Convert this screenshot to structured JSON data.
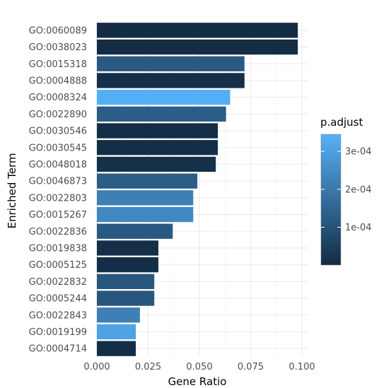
{
  "chart_data": {
    "type": "bar",
    "orientation": "horizontal",
    "xlabel": "Gene Ratio",
    "ylabel": "Enriched Term",
    "xlim": [
      0,
      0.1
    ],
    "x_ticks": [
      "0.000",
      "0.025",
      "0.050",
      "0.075",
      "0.100"
    ],
    "x_tick_values": [
      0,
      0.025,
      0.05,
      0.075,
      0.1
    ],
    "grid": true,
    "categories": [
      "GO:0060089",
      "GO:0038023",
      "GO:0015318",
      "GO:0004888",
      "GO:0008324",
      "GO:0022890",
      "GO:0030546",
      "GO:0030545",
      "GO:0048018",
      "GO:0046873",
      "GO:0022803",
      "GO:0015267",
      "GO:0022836",
      "GO:0019838",
      "GO:0005125",
      "GO:0022832",
      "GO:0005244",
      "GO:0022843",
      "GO:0019199",
      "GO:0004714"
    ],
    "values": [
      0.098,
      0.098,
      0.072,
      0.072,
      0.065,
      0.063,
      0.059,
      0.059,
      0.058,
      0.049,
      0.047,
      0.047,
      0.037,
      0.03,
      0.03,
      0.028,
      0.028,
      0.021,
      0.019,
      0.019
    ],
    "p_adjust": [
      3e-06,
      3e-06,
      0.00012,
      1e-05,
      0.00034,
      0.00013,
      8e-06,
      8e-06,
      1.2e-05,
      0.00013,
      0.00022,
      0.00024,
      0.00012,
      1e-05,
      8e-06,
      0.00011,
      0.00011,
      0.00022,
      0.00031,
      8e-06
    ],
    "legend": {
      "title": "p.adjust",
      "position": "right",
      "min": 3e-07,
      "max": 0.000345,
      "ticks": [
        "1e-04",
        "2e-04",
        "3e-04"
      ],
      "tick_values": [
        0.0001,
        0.0002,
        0.0003
      ],
      "color_low": "#132b43",
      "color_high": "#56b1f7"
    }
  }
}
